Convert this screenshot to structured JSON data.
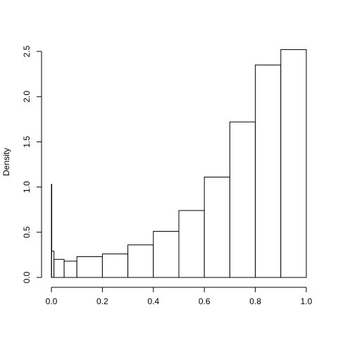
{
  "chart_data": {
    "type": "bar",
    "ylabel": "Density",
    "xlabel": "",
    "title": "",
    "xlim": [
      0,
      1
    ],
    "ylim": [
      0,
      2.5
    ],
    "x_ticks": [
      "0.0",
      "0.2",
      "0.4",
      "0.6",
      "0.8",
      "1.0"
    ],
    "y_ticks": [
      "0.0",
      "0.5",
      "1.0",
      "1.5",
      "2.0",
      "2.5"
    ],
    "bins": [
      {
        "start": 0.0,
        "end": 0.001,
        "density": 1.03
      },
      {
        "start": 0.001,
        "end": 0.01,
        "density": 0.29
      },
      {
        "start": 0.01,
        "end": 0.05,
        "density": 0.2
      },
      {
        "start": 0.05,
        "end": 0.1,
        "density": 0.18
      },
      {
        "start": 0.1,
        "end": 0.2,
        "density": 0.23
      },
      {
        "start": 0.2,
        "end": 0.3,
        "density": 0.26
      },
      {
        "start": 0.3,
        "end": 0.4,
        "density": 0.36
      },
      {
        "start": 0.4,
        "end": 0.5,
        "density": 0.51
      },
      {
        "start": 0.5,
        "end": 0.6,
        "density": 0.74
      },
      {
        "start": 0.6,
        "end": 0.7,
        "density": 1.11
      },
      {
        "start": 0.7,
        "end": 0.8,
        "density": 1.72
      },
      {
        "start": 0.8,
        "end": 0.9,
        "density": 2.35
      },
      {
        "start": 0.9,
        "end": 1.0,
        "density": 2.52
      }
    ]
  }
}
